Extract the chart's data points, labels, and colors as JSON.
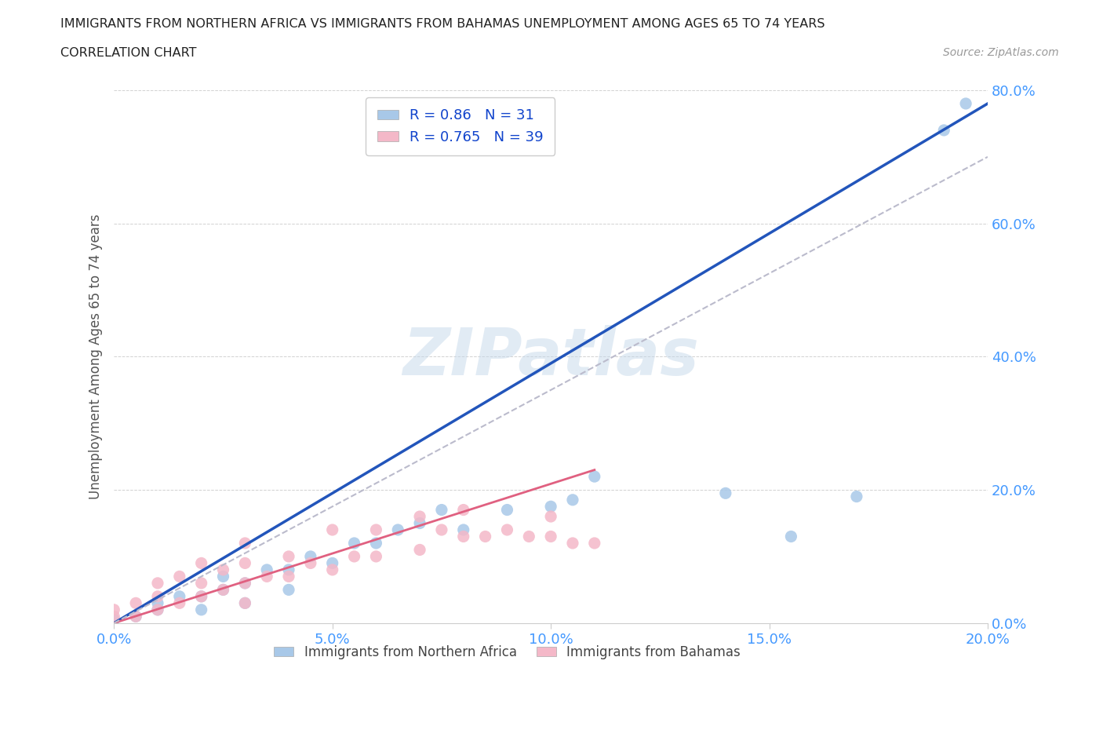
{
  "title_line1": "IMMIGRANTS FROM NORTHERN AFRICA VS IMMIGRANTS FROM BAHAMAS UNEMPLOYMENT AMONG AGES 65 TO 74 YEARS",
  "title_line2": "CORRELATION CHART",
  "source_text": "Source: ZipAtlas.com",
  "ylabel": "Unemployment Among Ages 65 to 74 years",
  "xlim": [
    0.0,
    0.2
  ],
  "ylim": [
    0.0,
    0.8
  ],
  "xticks": [
    0.0,
    0.05,
    0.1,
    0.15,
    0.2
  ],
  "yticks": [
    0.0,
    0.2,
    0.4,
    0.6,
    0.8
  ],
  "xticklabels": [
    "0.0%",
    "5.0%",
    "10.0%",
    "15.0%",
    "20.0%"
  ],
  "yticklabels": [
    "0.0%",
    "20.0%",
    "40.0%",
    "60.0%",
    "80.0%"
  ],
  "tick_color": "#4499ff",
  "blue_scatter_color": "#a8c8e8",
  "pink_scatter_color": "#f4b8c8",
  "blue_line_color": "#2255bb",
  "pink_line_color": "#e06080",
  "gray_dash_color": "#bbbbcc",
  "R_blue": 0.86,
  "N_blue": 31,
  "R_pink": 0.765,
  "N_pink": 39,
  "legend_label_blue": "Immigrants from Northern Africa",
  "legend_label_pink": "Immigrants from Bahamas",
  "watermark": "ZIPatlas",
  "blue_scatter_x": [
    0.0,
    0.005,
    0.01,
    0.01,
    0.015,
    0.02,
    0.02,
    0.025,
    0.025,
    0.03,
    0.03,
    0.035,
    0.04,
    0.04,
    0.045,
    0.05,
    0.055,
    0.06,
    0.065,
    0.07,
    0.075,
    0.08,
    0.09,
    0.1,
    0.105,
    0.11,
    0.14,
    0.155,
    0.17,
    0.19,
    0.195
  ],
  "blue_scatter_y": [
    0.005,
    0.01,
    0.02,
    0.03,
    0.04,
    0.02,
    0.04,
    0.05,
    0.07,
    0.03,
    0.06,
    0.08,
    0.05,
    0.08,
    0.1,
    0.09,
    0.12,
    0.12,
    0.14,
    0.15,
    0.17,
    0.14,
    0.17,
    0.175,
    0.185,
    0.22,
    0.195,
    0.13,
    0.19,
    0.74,
    0.78
  ],
  "pink_scatter_x": [
    0.0,
    0.0,
    0.005,
    0.005,
    0.01,
    0.01,
    0.01,
    0.015,
    0.015,
    0.02,
    0.02,
    0.02,
    0.025,
    0.025,
    0.03,
    0.03,
    0.03,
    0.03,
    0.035,
    0.04,
    0.04,
    0.045,
    0.05,
    0.05,
    0.055,
    0.06,
    0.06,
    0.07,
    0.07,
    0.075,
    0.08,
    0.08,
    0.085,
    0.09,
    0.095,
    0.1,
    0.1,
    0.105,
    0.11
  ],
  "pink_scatter_y": [
    0.01,
    0.02,
    0.01,
    0.03,
    0.02,
    0.04,
    0.06,
    0.03,
    0.07,
    0.04,
    0.06,
    0.09,
    0.05,
    0.08,
    0.03,
    0.06,
    0.09,
    0.12,
    0.07,
    0.07,
    0.1,
    0.09,
    0.08,
    0.14,
    0.1,
    0.1,
    0.14,
    0.11,
    0.16,
    0.14,
    0.13,
    0.17,
    0.13,
    0.14,
    0.13,
    0.13,
    0.16,
    0.12,
    0.12
  ],
  "blue_line_x": [
    0.0,
    0.2
  ],
  "blue_line_y": [
    0.0,
    0.78
  ],
  "pink_line_x": [
    0.0,
    0.11
  ],
  "pink_line_y": [
    0.0,
    0.23
  ],
  "gray_dash_line_x": [
    0.0,
    0.2
  ],
  "gray_dash_line_y": [
    0.0,
    0.7
  ]
}
